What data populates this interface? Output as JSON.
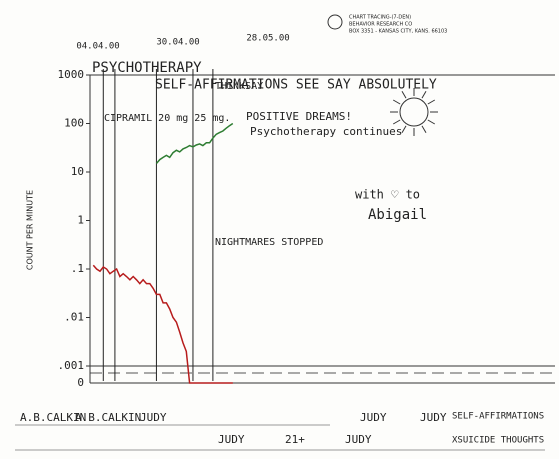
{
  "chart_data": {
    "type": "line",
    "header": [
      "CHART TRACING-(7-DEN)",
      "BEHAVIOR RESEARCH CO",
      "BOX 3351 - KANSAS CITY, KANS. 66103"
    ],
    "y_label": "COUNT PER MINUTE",
    "top_dates": [
      "04.04.00",
      "30.04.00",
      "28.05.00"
    ],
    "log_y": true,
    "ylim": [
      0.001,
      1000
    ],
    "yticks": [
      1000,
      100,
      10,
      1,
      {
        "value": 0.1,
        "label": ".1"
      },
      {
        "value": 0.01,
        "label": ".01"
      },
      {
        "value": 0.001,
        "label": ".001"
      }
    ],
    "zero_label": "0",
    "xlim": [
      0,
      140
    ],
    "x": [
      1,
      2,
      3,
      4,
      5,
      6,
      7,
      8,
      9,
      10,
      11,
      12,
      13,
      14,
      15,
      16,
      17,
      18,
      19,
      20,
      21,
      22,
      23,
      24,
      25,
      26,
      27,
      28,
      29,
      30,
      31,
      32,
      33,
      34,
      35,
      36,
      37,
      38,
      39,
      40,
      41,
      42,
      43
    ],
    "series": [
      {
        "name": "SELF-AFFIRMATIONS",
        "color": "#2e7d32",
        "values": [
          null,
          null,
          null,
          null,
          null,
          null,
          null,
          null,
          null,
          null,
          null,
          null,
          null,
          null,
          null,
          null,
          null,
          null,
          null,
          15,
          18,
          20,
          22,
          20,
          25,
          28,
          26,
          30,
          32,
          35,
          33,
          36,
          38,
          35,
          40,
          40,
          50,
          60,
          65,
          70,
          80,
          90,
          100
        ]
      },
      {
        "name": "XSUICIDE THOUGHTS",
        "color": "#b71c1c",
        "values": [
          0.12,
          0.1,
          0.09,
          0.11,
          0.1,
          0.08,
          0.09,
          0.1,
          0.07,
          0.08,
          0.07,
          0.06,
          0.07,
          0.06,
          0.05,
          0.06,
          0.05,
          0.05,
          0.04,
          0.03,
          0.03,
          0.02,
          0.02,
          0.015,
          0.01,
          0.008,
          0.005,
          0.003,
          0.002,
          0,
          0,
          0,
          0,
          0,
          0,
          0,
          0,
          0,
          0,
          0,
          0,
          0,
          0
        ]
      }
    ],
    "phase_lines": [
      {
        "x": 4,
        "label": "PSYCHOTHERAPY"
      },
      {
        "x": 7.5,
        "label": "CIPRAMIL 20 mg 25 mg."
      },
      {
        "x": 20,
        "label": "SELF-AFFIRMATIONS SEE SAY ABSOLUTELY"
      },
      {
        "x": 31,
        "label": "THINKSAY"
      },
      {
        "x": 37,
        "label": ""
      }
    ],
    "annotations": [
      "POSITIVE DREAMS!",
      "Psychotherapy continues",
      "NIGHTMARES STOPPED",
      "with ♡ to",
      "Abigail"
    ],
    "signatures": [
      "A.B.CALKIN",
      "A.B.CALKIN",
      "JUDY",
      "JUDY",
      "21+",
      "JUDY",
      "JUDY",
      "JUDY"
    ]
  }
}
